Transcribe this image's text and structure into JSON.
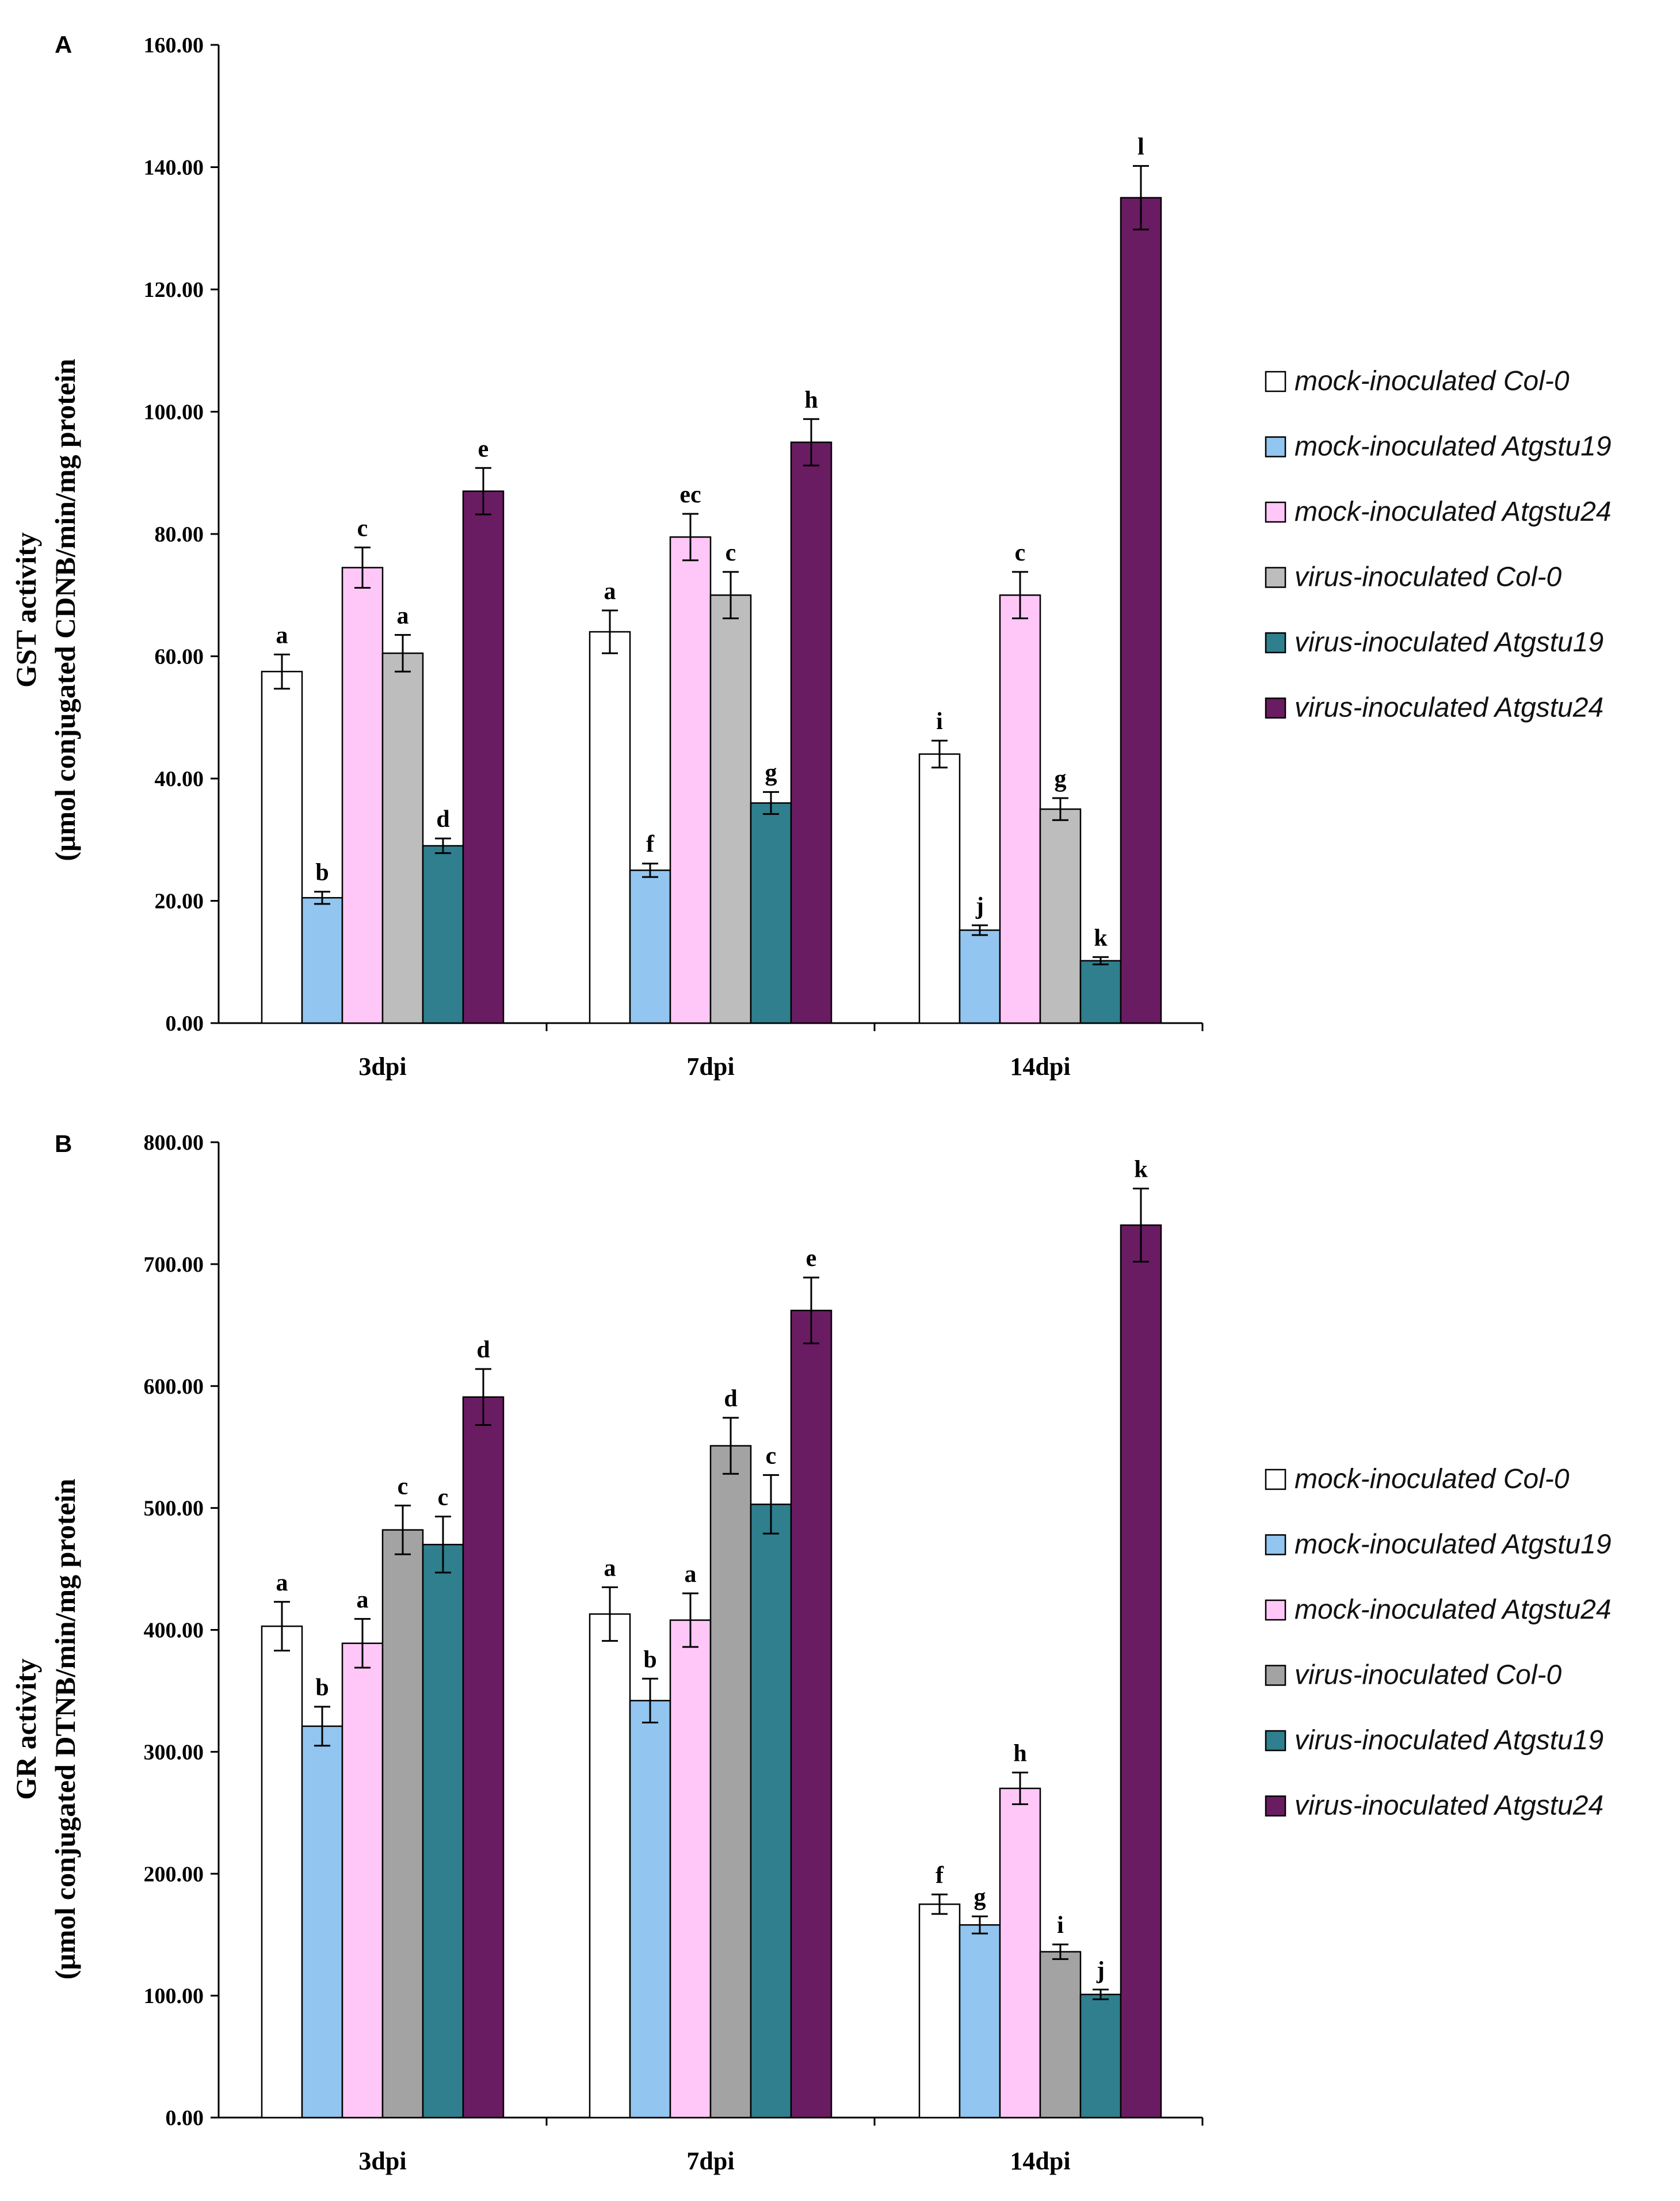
{
  "chart_data": [
    {
      "panel": "A",
      "type": "bar",
      "ylabel": [
        "GST activity",
        "(μmol conjugated CDNB/min/mg protein"
      ],
      "ylim": [
        0,
        160
      ],
      "yticks": [
        "0.00",
        "20.00",
        "40.00",
        "60.00",
        "80.00",
        "100.00",
        "120.00",
        "140.00",
        "160.00"
      ],
      "categories": [
        "3dpi",
        "7dpi",
        "14dpi"
      ],
      "series": [
        {
          "name": "mock-inoculated Col-0",
          "color": "#ffffff",
          "values": [
            57.5,
            64,
            44
          ],
          "errors": [
            2.8,
            3.5,
            2.2
          ],
          "letters": [
            "a",
            "a",
            "i"
          ]
        },
        {
          "name": "mock-inoculated Atgstu19",
          "color": "#92c5ef",
          "values": [
            20.5,
            25,
            15.2
          ],
          "errors": [
            1.0,
            1.1,
            0.8
          ],
          "letters": [
            "b",
            "f",
            "j"
          ]
        },
        {
          "name": "mock-inoculated Atgstu24",
          "color": "#ffc7f7",
          "values": [
            74.5,
            79.5,
            70
          ],
          "errors": [
            3.3,
            3.8,
            3.8
          ],
          "letters": [
            "c",
            "ec",
            "c"
          ]
        },
        {
          "name": "virus-inoculated Col-0",
          "color": "#bdbdbd",
          "values": [
            60.5,
            70,
            35
          ],
          "errors": [
            3.0,
            3.8,
            1.8
          ],
          "letters": [
            "a",
            "c",
            "g"
          ]
        },
        {
          "name": "virus-inoculated Atgstu19",
          "color": "#2f7f8e",
          "values": [
            29,
            36,
            10.2
          ],
          "errors": [
            1.2,
            1.8,
            0.6
          ],
          "letters": [
            "d",
            "g",
            "k"
          ]
        },
        {
          "name": "virus-inoculated Atgstu24",
          "color": "#6a1c63",
          "values": [
            87,
            95,
            135
          ],
          "errors": [
            3.8,
            3.8,
            5.2
          ],
          "letters": [
            "e",
            "h",
            "l"
          ]
        }
      ]
    },
    {
      "panel": "B",
      "type": "bar",
      "ylabel": [
        "GR activity",
        "(μmol conjugated DTNB/min/mg protein"
      ],
      "ylim": [
        0,
        800
      ],
      "yticks": [
        "0.00",
        "100.00",
        "200.00",
        "300.00",
        "400.00",
        "500.00",
        "600.00",
        "700.00",
        "800.00"
      ],
      "categories": [
        "3dpi",
        "7dpi",
        "14dpi"
      ],
      "series": [
        {
          "name": "mock-inoculated Col-0",
          "color": "#ffffff",
          "values": [
            403,
            413,
            175
          ],
          "errors": [
            20,
            22,
            8
          ],
          "letters": [
            "a",
            "a",
            "f"
          ]
        },
        {
          "name": "mock-inoculated Atgstu19",
          "color": "#92c5ef",
          "values": [
            321,
            342,
            158
          ],
          "errors": [
            16,
            18,
            7
          ],
          "letters": [
            "b",
            "b",
            "g"
          ]
        },
        {
          "name": "mock-inoculated Atgstu24",
          "color": "#ffc7f7",
          "values": [
            389,
            408,
            270
          ],
          "errors": [
            20,
            22,
            13
          ],
          "letters": [
            "a",
            "a",
            "h"
          ]
        },
        {
          "name": "virus-inoculated Col-0",
          "color": "#a3a3a3",
          "values": [
            482,
            551,
            136
          ],
          "errors": [
            20,
            23,
            6
          ],
          "letters": [
            "c",
            "d",
            "i"
          ]
        },
        {
          "name": "virus-inoculated Atgstu19",
          "color": "#2f7f8e",
          "values": [
            470,
            503,
            101
          ],
          "errors": [
            23,
            24,
            4
          ],
          "letters": [
            "c",
            "c",
            "j"
          ]
        },
        {
          "name": "virus-inoculated Atgstu24",
          "color": "#6a1c63",
          "values": [
            591,
            662,
            732
          ],
          "errors": [
            23,
            27,
            30
          ],
          "letters": [
            "d",
            "e",
            "k"
          ]
        }
      ]
    }
  ]
}
